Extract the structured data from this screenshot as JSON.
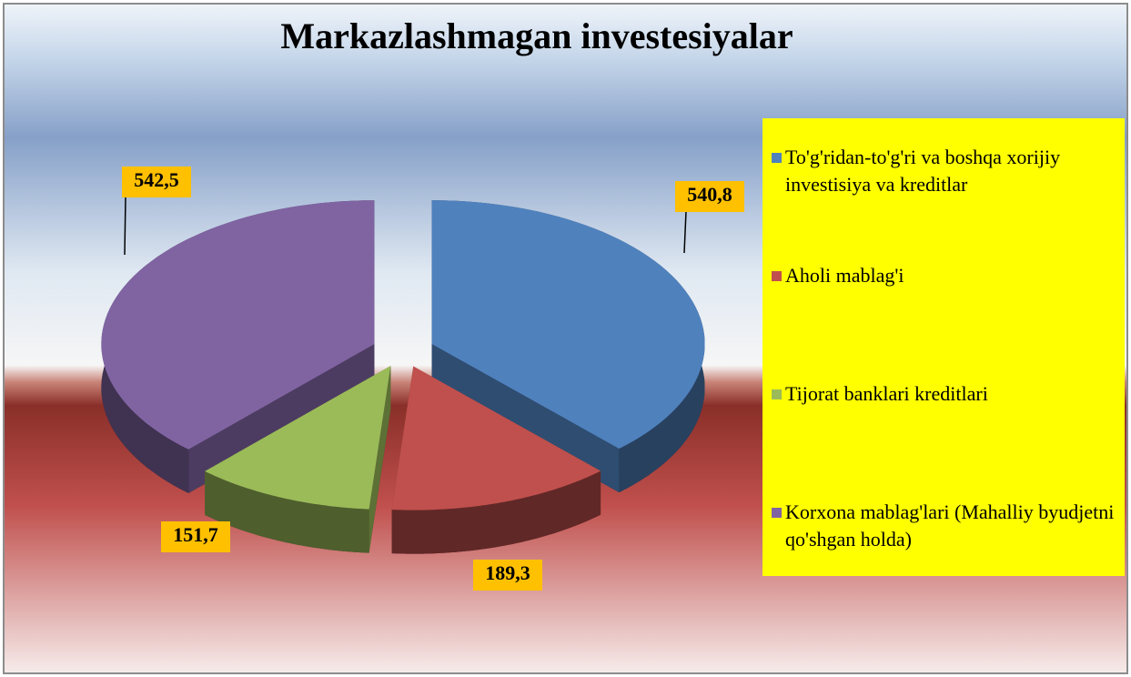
{
  "chart_data": {
    "type": "pie3d",
    "title": "Markazlashmagan investesiyalar",
    "categories": [
      "To'g'ridan-to'g'ri va boshqa xorijiy investisiya va kreditlar",
      "Aholi mablag'i",
      "Tijorat banklari kreditlari",
      "Korxona mablag'lari (Mahalliy byudjetni qo'shgan holda)"
    ],
    "values": [
      540.8,
      189.3,
      151.7,
      542.5
    ],
    "value_labels": [
      "540,8",
      "189,3",
      "151,7",
      "542,5"
    ],
    "colors": [
      "#4f81bd",
      "#c0504d",
      "#9bbb59",
      "#8064a2"
    ],
    "legend": "right"
  }
}
